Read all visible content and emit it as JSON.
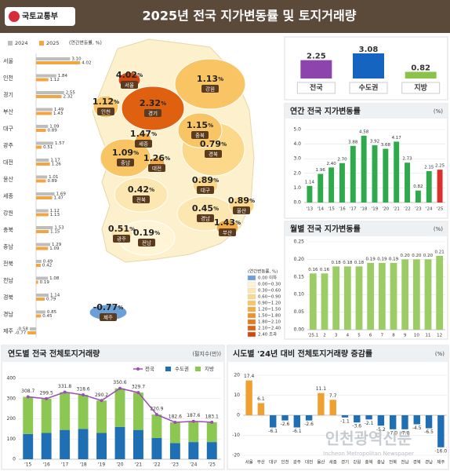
{
  "header": {
    "logo": "국토교통부",
    "title": "2025년 전국 지가변동률 및 토지거래량"
  },
  "map": {
    "unit": "%",
    "legend_title": "(연간변동률, %)",
    "bins": [
      {
        "label": "0.00 이하",
        "color": "#6a9fd8"
      },
      {
        "label": "0.00~0.30",
        "color": "#fff5d6"
      },
      {
        "label": "0.30~0.60",
        "color": "#fde7b0"
      },
      {
        "label": "0.60~0.90",
        "color": "#fbd88a"
      },
      {
        "label": "0.90~1.20",
        "color": "#f8c464"
      },
      {
        "label": "1.20~1.50",
        "color": "#f3ab3f"
      },
      {
        "label": "1.50~1.80",
        "color": "#ee9228"
      },
      {
        "label": "1.80~2.10",
        "color": "#e67a1a"
      },
      {
        "label": "2.10~2.40",
        "color": "#df6110"
      },
      {
        "label": "2.40 초과",
        "color": "#d4470a"
      }
    ],
    "regions": [
      {
        "name": "서울",
        "value": 4.02,
        "color": "#d4470a"
      },
      {
        "name": "인천",
        "value": 1.12,
        "color": "#f8c464"
      },
      {
        "name": "경기",
        "value": 2.32,
        "color": "#df6110"
      },
      {
        "name": "부산",
        "value": 1.43,
        "color": "#f3ab3f"
      },
      {
        "name": "대구",
        "value": 0.89,
        "color": "#fbd88a"
      },
      {
        "name": "광주",
        "value": 0.51,
        "color": "#fde7b0"
      },
      {
        "name": "대전",
        "value": 1.26,
        "color": "#f3ab3f"
      },
      {
        "name": "울산",
        "value": 0.89,
        "color": "#fbd88a"
      },
      {
        "name": "세종",
        "value": 1.47,
        "color": "#f3ab3f"
      },
      {
        "name": "강원",
        "value": 1.13,
        "color": "#f8c464"
      },
      {
        "name": "충북",
        "value": 1.15,
        "color": "#f8c464"
      },
      {
        "name": "충남",
        "value": 1.09,
        "color": "#f8c464"
      },
      {
        "name": "전북",
        "value": 0.42,
        "color": "#fde7b0"
      },
      {
        "name": "전남",
        "value": 0.19,
        "color": "#fff5d6"
      },
      {
        "name": "경북",
        "value": 0.79,
        "color": "#fbd88a"
      },
      {
        "name": "경남",
        "value": 0.45,
        "color": "#fde7b0"
      },
      {
        "name": "제주",
        "value": -0.77,
        "color": "#6a9fd8"
      }
    ]
  },
  "watermark": {
    "text": "인천광역신문",
    "sub": "Incheon Metropolitan Newspaper"
  },
  "chart_data": [
    {
      "type": "bar",
      "orientation": "horizontal",
      "unit": "(연간변동률, %)",
      "categories": [
        "서울",
        "인천",
        "경기",
        "부산",
        "대구",
        "광주",
        "대전",
        "울산",
        "세종",
        "강원",
        "충북",
        "충남",
        "전북",
        "전남",
        "경북",
        "경남",
        "제주"
      ],
      "series": [
        {
          "name": "2024",
          "color": "#bdbdbd",
          "values": [
            3.1,
            1.84,
            2.55,
            1.49,
            1.09,
            1.57,
            1.17,
            1.01,
            1.69,
            1.12,
            1.53,
            1.29,
            0.49,
            1.08,
            1.14,
            0.85,
            -0.58
          ],
          "value_labels": [
            "3.10",
            "1.84",
            "2.55",
            "1.49",
            "1.09",
            "1.57",
            "1.17",
            "1.01",
            "1.69",
            "1.12",
            "1.53",
            "1.29",
            "0.49",
            "1.08",
            "1.14",
            "0.85",
            "-0.58"
          ]
        },
        {
          "name": "2025",
          "color": "#f2a541",
          "values": [
            4.02,
            1.12,
            2.32,
            1.43,
            0.89,
            0.51,
            1.26,
            0.89,
            1.47,
            1.13,
            1.15,
            1.09,
            0.42,
            0.19,
            0.79,
            0.45,
            -0.77
          ],
          "value_labels": [
            "4.02",
            "1.12",
            "2.32",
            "1.43",
            "0.89",
            "0.51",
            "1.26",
            "0.89",
            "1.47",
            "1.13",
            "1.15",
            "1.09",
            "0.42",
            "0.19",
            "0.79",
            "0.45",
            "-0.77"
          ]
        }
      ]
    },
    {
      "type": "bar",
      "show_values": true,
      "categories": [
        "전국",
        "수도권",
        "지방"
      ],
      "series": [
        {
          "values": [
            2.25,
            3.08,
            0.82
          ],
          "colors": [
            "#8e44ad",
            "#1565c0",
            "#8bc34a"
          ]
        }
      ]
    },
    {
      "type": "bar",
      "title": "연간 전국 지가변동률",
      "unit": "(%)",
      "show_values": true,
      "grid": true,
      "categories": [
        "'13",
        "'14",
        "'15",
        "'16",
        "'17",
        "'18",
        "'19",
        "'20",
        "'21",
        "'22",
        "'23",
        "'24",
        "'25"
      ],
      "series": [
        {
          "values": [
            1.14,
            1.96,
            2.4,
            2.7,
            3.88,
            4.58,
            3.92,
            3.68,
            4.17,
            2.73,
            0.82,
            2.15,
            2.25
          ],
          "value_labels": [
            "1.14",
            "1.96",
            "2.40",
            "2.70",
            "3.88",
            "4.58",
            "3.92",
            "3.68",
            "4.17",
            "2.73",
            "0.82",
            "2.15",
            "2.25"
          ],
          "colors": [
            "#2eaa4a",
            "#2eaa4a",
            "#2eaa4a",
            "#2eaa4a",
            "#2eaa4a",
            "#2eaa4a",
            "#2eaa4a",
            "#2eaa4a",
            "#2eaa4a",
            "#2eaa4a",
            "#2eaa4a",
            "#2eaa4a",
            "#d9302c"
          ]
        }
      ],
      "ylim": [
        0,
        5
      ],
      "yticks": [
        {
          "value": 0,
          "label": "0.0"
        },
        {
          "value": 1,
          "label": "1.0"
        },
        {
          "value": 2,
          "label": "2.0"
        },
        {
          "value": 3,
          "label": "3.0"
        },
        {
          "value": 4,
          "label": "4.0"
        },
        {
          "value": 5,
          "label": "5.0"
        }
      ]
    },
    {
      "type": "bar",
      "title": "월별 전국 지가변동률",
      "unit": "(%)",
      "show_values": true,
      "grid": true,
      "categories": [
        "'25.1",
        "2",
        "3",
        "4",
        "5",
        "6",
        "7",
        "8",
        "9",
        "10",
        "11",
        "12"
      ],
      "series": [
        {
          "color": "#9ccc65",
          "values": [
            0.16,
            0.16,
            0.18,
            0.18,
            0.18,
            0.19,
            0.19,
            0.19,
            0.2,
            0.2,
            0.2,
            0.21
          ],
          "value_labels": [
            "0.16",
            "0.16",
            "0.18",
            "0.18",
            "0.18",
            "0.19",
            "0.19",
            "0.19",
            "0.20",
            "0.20",
            "0.20",
            "0.21"
          ]
        }
      ],
      "ylim": [
        0,
        0.25
      ],
      "yticks": [
        {
          "value": 0,
          "label": "0.00"
        },
        {
          "value": 0.05,
          "label": "0.05"
        },
        {
          "value": 0.1,
          "label": "0.10"
        },
        {
          "value": 0.15,
          "label": "0.15"
        },
        {
          "value": 0.2,
          "label": "0.20"
        },
        {
          "value": 0.25,
          "label": "0.25"
        }
      ]
    },
    {
      "type": "bar",
      "title": "연도별 전국 전체토지거래량",
      "unit": "(필지수(만))",
      "stacked": true,
      "grid": true,
      "categories": [
        "'15",
        "'16",
        "'17",
        "'18",
        "'19",
        "'20",
        "'21",
        "'22",
        "'23",
        "'24",
        "'25"
      ],
      "series": [
        {
          "name": "전국",
          "type": "line",
          "color": "#9b4fb5",
          "values": [
            308.7,
            299.5,
            331.8,
            318.6,
            290.2,
            350.6,
            329.7,
            220.9,
            182.6,
            187.6,
            183.1
          ]
        },
        {
          "name": "수도권",
          "color": "#1f6fb5",
          "values": [
            125,
            130,
            145,
            150,
            130,
            160,
            145,
            105,
            80,
            85,
            85
          ]
        },
        {
          "name": "지방",
          "color": "#8cc751",
          "values": [
            183.7,
            169.5,
            186.8,
            168.6,
            160.2,
            190.6,
            184.7,
            115.9,
            102.6,
            102.6,
            98.1
          ]
        }
      ],
      "ylim": [
        0,
        400
      ],
      "yticks": [
        0,
        100,
        200,
        300,
        400
      ]
    },
    {
      "type": "bar",
      "title": "시도별 '24년 대비 전체토지거래량 증감률",
      "unit": "(%)",
      "show_values": true,
      "grid": true,
      "categories": [
        "서울",
        "부산",
        "대구",
        "인천",
        "광주",
        "대전",
        "울산",
        "세종",
        "경기",
        "강원",
        "충북",
        "충남",
        "전북",
        "전남",
        "경북",
        "경남",
        "제주"
      ],
      "series": [
        {
          "values": [
            17.4,
            6.1,
            -6.1,
            -2.6,
            -6.1,
            -2.6,
            11.1,
            7.7,
            -1.1,
            -3.6,
            -2.1,
            -5.2,
            -7.0,
            -7.0,
            -4.5,
            -6.5,
            -16.0
          ],
          "value_labels": [
            "17.4",
            "6.1",
            "-6.1",
            "-2.6",
            "-6.1",
            "-2.6",
            "11.1",
            "7.7",
            "-1.1",
            "-3.6",
            "-2.1",
            "-5.2",
            "-7.0",
            "-7.0",
            "-4.5",
            "-6.5",
            "-16.0"
          ],
          "colors": [
            "#f0a030",
            "#f0a030",
            "#1f6fb5",
            "#1f6fb5",
            "#1f6fb5",
            "#1f6fb5",
            "#f0a030",
            "#f0a030",
            "#1f6fb5",
            "#1f6fb5",
            "#1f6fb5",
            "#1f6fb5",
            "#1f6fb5",
            "#1f6fb5",
            "#1f6fb5",
            "#1f6fb5",
            "#1f6fb5"
          ]
        }
      ],
      "ylim": [
        -20,
        20
      ],
      "yticks": [
        20,
        10,
        0,
        -10,
        -20
      ]
    }
  ]
}
